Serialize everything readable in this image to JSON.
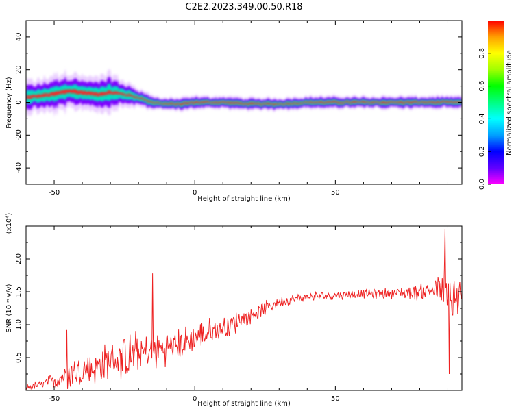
{
  "title": "C2E2.2023.349.00.50.R18",
  "colors": {
    "snr_line": "#ee2222",
    "trace_base": "#7a00ff",
    "trace_band": "#00e0c0",
    "trace_core": "#ff2020"
  },
  "chart_data": [
    {
      "type": "heatmap",
      "xlabel": "Height of straight line (km)",
      "ylabel": "Frequency (Hz)",
      "xlim": [
        -60,
        95
      ],
      "ylim": [
        -50,
        50
      ],
      "x_ticks": [
        "-50",
        "0",
        "50"
      ],
      "y_ticks": [
        "-40",
        "-20",
        "0",
        "20",
        "40"
      ],
      "colorbar": {
        "label": "Normalized spectral amplitude",
        "range": [
          0,
          1
        ],
        "ticks": [
          "0.0",
          "0.2",
          "0.4",
          "0.6",
          "0.8"
        ],
        "colormap": [
          "#ff00ff",
          "#6000ff",
          "#0000ff",
          "#00a0ff",
          "#00ffff",
          "#00ff80",
          "#00ff00",
          "#a0ff00",
          "#ffff00",
          "#ffa000",
          "#ff0000"
        ]
      },
      "trace": {
        "x": [
          -60,
          -55,
          -50,
          -45,
          -40,
          -35,
          -30,
          -25,
          -20,
          -15,
          -10,
          -5,
          0,
          5,
          10,
          20,
          30,
          40,
          50,
          60,
          70,
          80,
          90,
          95
        ],
        "center_hz": [
          3,
          4,
          5,
          7,
          6,
          5,
          6,
          5,
          3,
          0,
          -1,
          -1,
          0,
          0,
          0,
          -1,
          -1,
          0,
          0,
          0,
          0,
          0,
          0,
          0
        ],
        "spread_hz": [
          5,
          5,
          6,
          6,
          5,
          5,
          6,
          4,
          3,
          2,
          2,
          2,
          2,
          2,
          2,
          2,
          2,
          2,
          2,
          2,
          2,
          2,
          2,
          2
        ],
        "core_amplitude": [
          0.6,
          0.6,
          0.6,
          0.7,
          0.7,
          0.6,
          0.5,
          0.5,
          0.6,
          0.7,
          0.8,
          0.9,
          0.9,
          0.9,
          0.9,
          0.9,
          0.8,
          0.8,
          0.9,
          0.9,
          0.9,
          0.9,
          0.9,
          0.8
        ]
      }
    },
    {
      "type": "line",
      "xlabel": "Height of straight line (km)",
      "ylabel": "SNR (10 * v/v)",
      "y_multiplier": "(x10⁴)",
      "xlim": [
        -60,
        95
      ],
      "ylim": [
        0,
        2.5
      ],
      "x_ticks": [
        "-50",
        "0",
        "50"
      ],
      "y_ticks": [
        "0.5",
        "1.0",
        "1.5",
        "2.0"
      ],
      "series": [
        {
          "trend_x": [
            -60,
            -55,
            -50,
            -45,
            -40,
            -35,
            -30,
            -25,
            -20,
            -15,
            -10,
            -5,
            0,
            5,
            10,
            15,
            20,
            25,
            30,
            40,
            50,
            60,
            70,
            80,
            88,
            90,
            95
          ],
          "trend_y": [
            0.05,
            0.08,
            0.15,
            0.25,
            0.3,
            0.35,
            0.45,
            0.5,
            0.55,
            0.6,
            0.65,
            0.7,
            0.8,
            0.88,
            0.95,
            1.05,
            1.15,
            1.25,
            1.35,
            1.42,
            1.45,
            1.47,
            1.48,
            1.5,
            1.55,
            1.3,
            1.4
          ],
          "noise_amplitude": [
            0.05,
            0.08,
            0.15,
            0.3,
            0.3,
            0.35,
            0.35,
            0.4,
            0.4,
            0.35,
            0.3,
            0.3,
            0.25,
            0.25,
            0.2,
            0.2,
            0.15,
            0.12,
            0.1,
            0.08,
            0.08,
            0.08,
            0.1,
            0.15,
            0.3,
            0.8,
            0.3
          ],
          "peaks": [
            {
              "x": -45.5,
              "y": 0.92
            },
            {
              "x": -15,
              "y": 1.78
            },
            {
              "x": 89,
              "y": 2.45
            },
            {
              "x": 90.5,
              "y": 0.25
            }
          ]
        }
      ]
    }
  ]
}
